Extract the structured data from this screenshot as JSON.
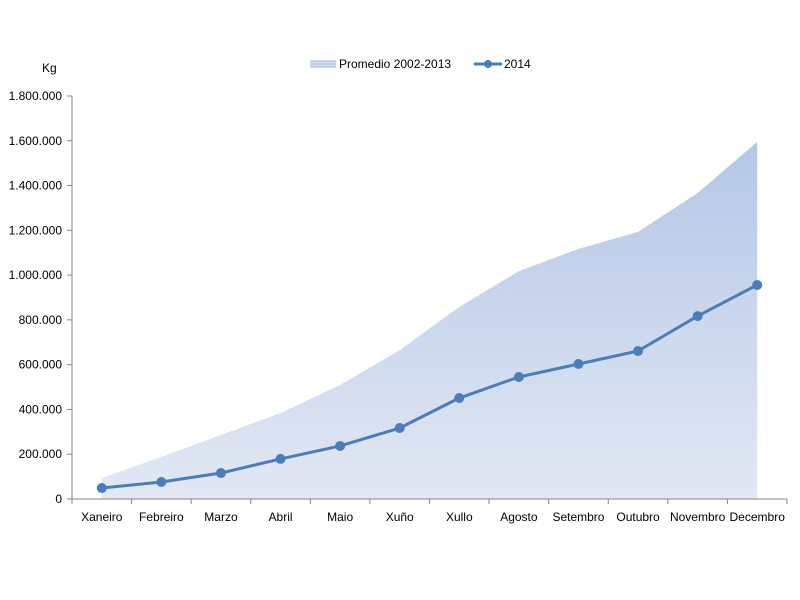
{
  "chart_data": {
    "type": "line",
    "title": "",
    "ylabel": "Kg",
    "xlabel": "",
    "ylim": [
      0,
      1800000
    ],
    "yticks": [
      0,
      200000,
      400000,
      600000,
      800000,
      1000000,
      1200000,
      1400000,
      1600000,
      1800000
    ],
    "ytick_labels": [
      "0",
      "200.000",
      "400.000",
      "600.000",
      "800.000",
      "1.000.000",
      "1.200.000",
      "1.400.000",
      "1.600.000",
      "1.800.000"
    ],
    "categories": [
      "Xaneiro",
      "Febreiro",
      "Marzo",
      "Abril",
      "Maio",
      "Xuño",
      "Xullo",
      "Agosto",
      "Setembro",
      "Outubro",
      "Novembro",
      "Decembro"
    ],
    "legend_position": "top",
    "grid": false,
    "series": [
      {
        "name": "Promedio 2002-2013",
        "type": "area",
        "color": "#b4c7e7",
        "values": [
          94000,
          188000,
          286000,
          384000,
          509000,
          665000,
          858000,
          1018000,
          1117000,
          1193000,
          1367000,
          1595000
        ]
      },
      {
        "name": "2014",
        "type": "line",
        "color": "#4a7ebb",
        "values": [
          49000,
          76000,
          116000,
          179000,
          237000,
          317000,
          451000,
          545000,
          603000,
          661000,
          817000,
          956000
        ]
      }
    ]
  }
}
